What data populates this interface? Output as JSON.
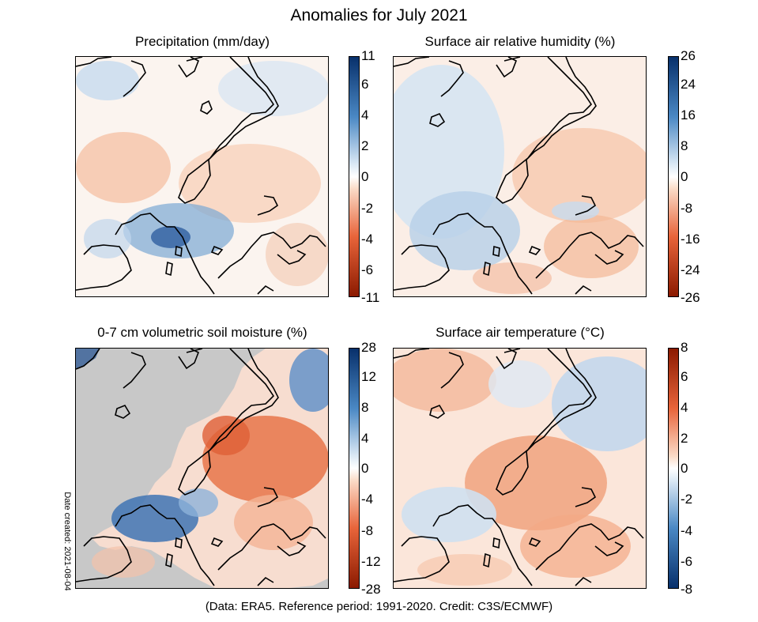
{
  "title": "Anomalies for July 2021",
  "footer": "(Data: ERA5.  Reference period: 1991-2020.  Credit: C3S/ECMWF)",
  "date_created": "Date created: 2021-08-04",
  "panels": [
    {
      "title": "Precipitation (mm/day)",
      "colorbar_ticks": [
        "11",
        "6",
        "4",
        "2",
        "0",
        "-2",
        "-4",
        "-6",
        "-11"
      ],
      "colormap": "brown-white-blue",
      "colors": {
        "high": "#08306b",
        "mid": "#ffffff",
        "low": "#8b1a00"
      }
    },
    {
      "title": "Surface air relative humidity (%)",
      "colorbar_ticks": [
        "26",
        "24",
        "16",
        "8",
        "0",
        "-8",
        "-16",
        "-24",
        "-26"
      ],
      "colormap": "brown-white-blue",
      "colors": {
        "high": "#08306b",
        "mid": "#ffffff",
        "low": "#8b1a00"
      }
    },
    {
      "title": "0-7 cm volumetric soil moisture (%)",
      "colorbar_ticks": [
        "28",
        "12",
        "8",
        "4",
        "0",
        "-4",
        "-8",
        "-12",
        "-28"
      ],
      "colormap": "brown-white-blue",
      "colors": {
        "high": "#08306b",
        "mid": "#ffffff",
        "low": "#8b1a00",
        "no_data": "#c8c8c8"
      }
    },
    {
      "title": "Surface air temperature (°C)",
      "colorbar_ticks": [
        "8",
        "6",
        "4",
        "2",
        "0",
        "-2",
        "-4",
        "-6",
        "-8"
      ],
      "colormap": "blue-white-red",
      "colors": {
        "high": "#8b1a00",
        "mid": "#ffffff",
        "low": "#08306b"
      }
    }
  ]
}
